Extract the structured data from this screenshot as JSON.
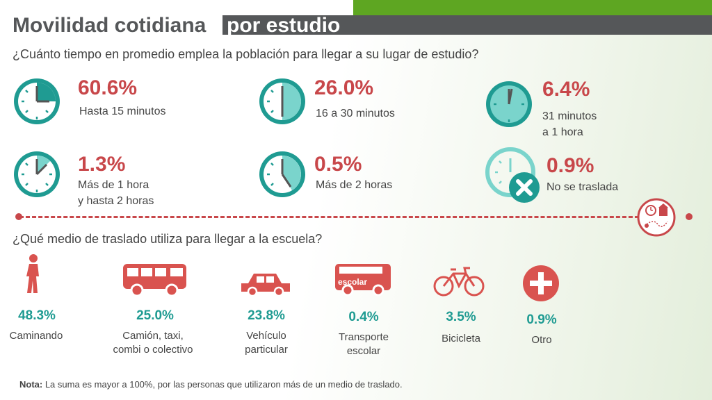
{
  "title": {
    "main": "Movilidad cotidiana",
    "sub": "por estudio"
  },
  "question_time": "¿Cuánto tiempo en promedio emplea la población para llegar a su lugar de estudio?",
  "time_items": [
    {
      "pct": "60.6%",
      "label_1": "Hasta 15 minutos",
      "label_2": "",
      "icon": "clock-icon"
    },
    {
      "pct": "26.0%",
      "label_1": "16 a 30 minutos",
      "label_2": "",
      "icon": "clock-icon"
    },
    {
      "pct": "6.4%",
      "label_1": "31 minutos",
      "label_2": "a 1 hora",
      "icon": "clock-icon"
    },
    {
      "pct": "1.3%",
      "label_1": "Más de 1 hora",
      "label_2": "y hasta 2 horas",
      "icon": "clock-icon"
    },
    {
      "pct": "0.5%",
      "label_1": "Más de 2 horas",
      "label_2": "",
      "icon": "clock-icon"
    },
    {
      "pct": "0.9%",
      "label_1": "No se traslada",
      "label_2": "",
      "icon": "clock-x-icon"
    }
  ],
  "question_mode": "¿Qué medio de traslado utiliza para llegar a la escuela?",
  "modes": [
    {
      "pct": "48.3%",
      "label_1": "Caminando",
      "label_2": "",
      "icon": "walking-person-icon"
    },
    {
      "pct": "25.0%",
      "label_1": "Camión, taxi,",
      "label_2": "combi o colectivo",
      "icon": "bus-icon"
    },
    {
      "pct": "23.8%",
      "label_1": "Vehículo",
      "label_2": "particular",
      "icon": "car-icon"
    },
    {
      "pct": "0.4%",
      "label_1": "Transporte",
      "label_2": "escolar",
      "icon": "school-bus-icon",
      "icon_text": "escolar"
    },
    {
      "pct": "3.5%",
      "label_1": "Bicicleta",
      "label_2": "",
      "icon": "bicycle-icon"
    },
    {
      "pct": "0.9%",
      "label_1": "Otro",
      "label_2": "",
      "icon": "plus-icon"
    }
  ],
  "note": {
    "label": "Nota:",
    "text": " La suma es mayor a 100%, por las personas que utilizaron más de un medio de traslado."
  },
  "colors": {
    "teal": "#1f9b92",
    "teal_light": "#4fc9bf",
    "red": "#c8474a",
    "green": "#5ea622",
    "gray": "#555759"
  }
}
